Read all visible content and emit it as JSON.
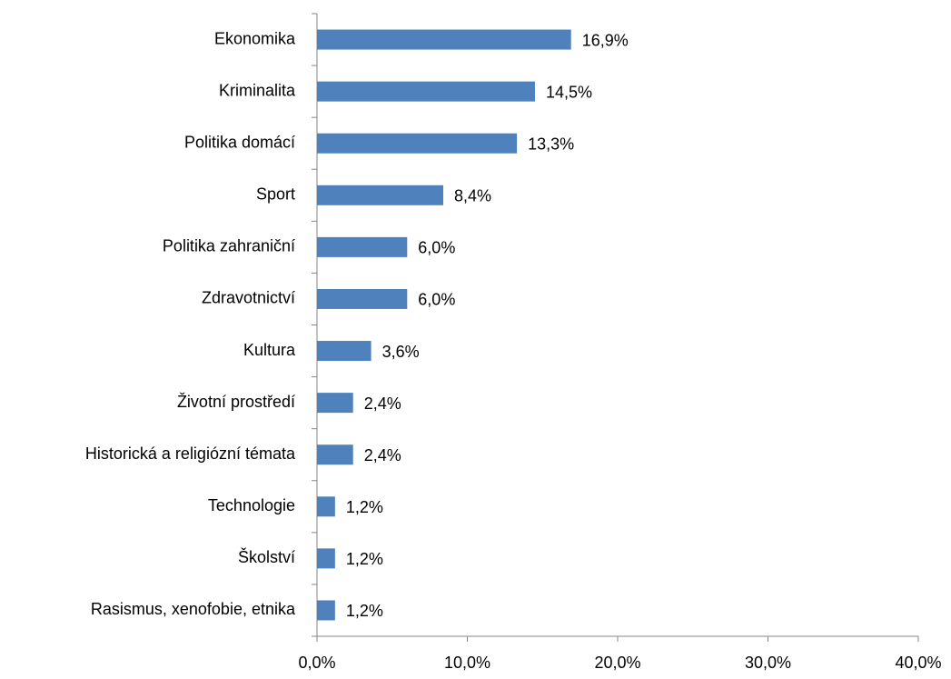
{
  "chart_data": {
    "type": "bar",
    "orientation": "horizontal",
    "categories": [
      "Ekonomika",
      "Kriminalita",
      "Politika domácí",
      "Sport",
      "Politika zahraniční",
      "Zdravotnictví",
      "Kultura",
      "Životní prostředí",
      "Historická a religiózní témata",
      "Technologie",
      "Školství",
      "Rasismus, xenofobie, etnika"
    ],
    "values": [
      16.9,
      14.5,
      13.3,
      8.4,
      6.0,
      6.0,
      3.6,
      2.4,
      2.4,
      1.2,
      1.2,
      1.2
    ],
    "value_labels": [
      "16,9%",
      "14,5%",
      "13,3%",
      "8,4%",
      "6,0%",
      "6,0%",
      "3,6%",
      "2,4%",
      "2,4%",
      "1,2%",
      "1,2%",
      "1,2%"
    ],
    "color": "#4f81bd",
    "xlim": [
      0,
      40
    ],
    "xticks": [
      {
        "value": 0,
        "label": "0,0%"
      },
      {
        "value": 10,
        "label": "10,0%"
      },
      {
        "value": 20,
        "label": "20,0%"
      },
      {
        "value": 30,
        "label": "30,0%"
      },
      {
        "value": 40,
        "label": "40,0%"
      }
    ],
    "grid": false
  }
}
